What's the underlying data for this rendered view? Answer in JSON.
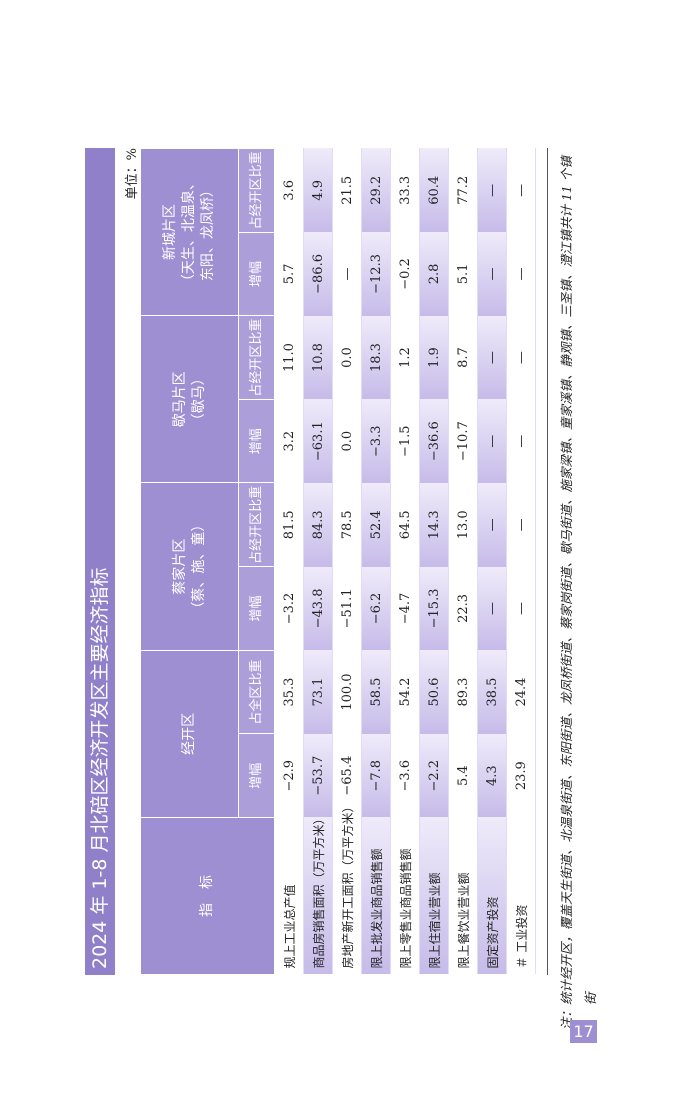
{
  "header": {
    "title": "2024 年 1-8 月北碚区经济开发区主要经济指标",
    "unit": "单位：%"
  },
  "table": {
    "indicator": "指　标",
    "groups": [
      {
        "name": [
          "经开区"
        ],
        "sub": [
          "增幅",
          "占全区比重"
        ]
      },
      {
        "name": [
          "蔡家片区",
          "（蔡、施、童）"
        ],
        "sub": [
          "增幅",
          "占经开区比重"
        ]
      },
      {
        "name": [
          "歇马片区",
          "（歇马）"
        ],
        "sub": [
          "增幅",
          "占经开区比重"
        ]
      },
      {
        "name": [
          "新城片区",
          "（天生、北温泉、",
          "东阳、龙凤桥）"
        ],
        "sub": [
          "增幅",
          "占经开区比重"
        ]
      }
    ],
    "rows": [
      {
        "label": "规上工业总产值",
        "values": [
          "−2.9",
          "35.3",
          "−3.2",
          "81.5",
          "3.2",
          "11.0",
          "5.7",
          "3.6"
        ]
      },
      {
        "label": "商品房销售面积（万平方米）",
        "values": [
          "−53.7",
          "73.1",
          "−43.8",
          "84.3",
          "−63.1",
          "10.8",
          "−86.6",
          "4.9"
        ]
      },
      {
        "label": "房地产新开工面积（万平方米）",
        "values": [
          "−65.4",
          "100.0",
          "−51.1",
          "78.5",
          "0.0",
          "0.0",
          "—",
          "21.5"
        ]
      },
      {
        "label": "限上批发业商品销售额",
        "values": [
          "−7.8",
          "58.5",
          "−6.2",
          "52.4",
          "−3.3",
          "18.3",
          "−12.3",
          "29.2"
        ]
      },
      {
        "label": "限上零售业商品销售额",
        "values": [
          "−3.6",
          "54.2",
          "−4.7",
          "64.5",
          "−1.5",
          "1.2",
          "−0.2",
          "33.3"
        ]
      },
      {
        "label": "限上住宿业营业额",
        "values": [
          "−2.2",
          "50.6",
          "−15.3",
          "14.3",
          "−36.6",
          "1.9",
          "2.8",
          "60.4"
        ]
      },
      {
        "label": "限上餐饮业营业额",
        "values": [
          "5.4",
          "89.3",
          "22.3",
          "13.0",
          "−10.7",
          "8.7",
          "5.1",
          "77.2"
        ]
      },
      {
        "label": "固定资产投资",
        "values": [
          "4.3",
          "38.5",
          "—",
          "—",
          "—",
          "—",
          "—",
          "—"
        ]
      },
      {
        "label": "＃ 工业投资",
        "values": [
          "23.9",
          "24.4",
          "—",
          "—",
          "—",
          "—",
          "—",
          "—"
        ]
      }
    ]
  },
  "footnote": "注：统计经开区，覆盖天生街道、北温泉街道、东阳街道、龙凤桥街道、蔡家岗街道、歇马街道、施家梁镇、童家溪镇、静观镇、三圣镇、澄江镇共计 11 个镇街",
  "page_number": "17"
}
